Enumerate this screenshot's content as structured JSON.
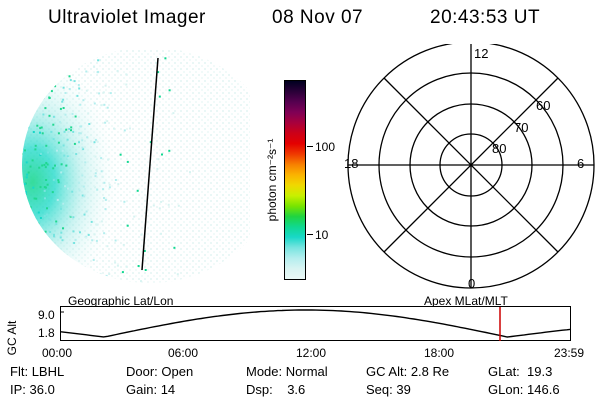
{
  "header": {
    "title": "Ultraviolet Imager",
    "date": "08 Nov 07",
    "time": "20:43:53 UT"
  },
  "colorbar": {
    "unit_label": "photon cm⁻²s⁻¹",
    "ticks": [
      "100",
      "10"
    ],
    "colors": [
      "#000020",
      "#2a0038",
      "#55004f",
      "#800055",
      "#a8003c",
      "#cc0018",
      "#e40000",
      "#ef3800",
      "#f77f00",
      "#fbb300",
      "#f0d800",
      "#c8f000",
      "#78e400",
      "#20d440",
      "#10d890",
      "#18d8c8",
      "#78e4e0",
      "#b4eeee",
      "#d8f4f2",
      "#eaf8f6"
    ]
  },
  "polar_plot": {
    "mlt_labels": {
      "top": "12",
      "bottom": "0",
      "left": "18",
      "right": "6"
    },
    "lat_labels": [
      "60",
      "70",
      "80"
    ]
  },
  "timeline": {
    "left_label": "Geographic Lat/Lon",
    "right_label": "Apex MLat/MLT",
    "axis_label": "GC Alt",
    "y_ticks": [
      "9.0",
      "1.8"
    ],
    "x_ticks": [
      "00:00",
      "06:00",
      "12:00",
      "18:00",
      "23:59"
    ],
    "marker_color": "#cc0000"
  },
  "info": {
    "row1": [
      {
        "label": "Flt:",
        "value": "LBHL"
      },
      {
        "label": "Door:",
        "value": "Open"
      },
      {
        "label": "Mode:",
        "value": "Normal"
      },
      {
        "label": "GC Alt:",
        "value": "2.8 Re"
      },
      {
        "label": "GLat:",
        "value": "19.3"
      }
    ],
    "row2": [
      {
        "label": "IP:",
        "value": "36.0"
      },
      {
        "label": "Gain:",
        "value": "14"
      },
      {
        "label": "Dsp:",
        "value": "3.6"
      },
      {
        "label": "Seq:",
        "value": "39"
      },
      {
        "label": "GLon:",
        "value": "146.6"
      }
    ]
  }
}
